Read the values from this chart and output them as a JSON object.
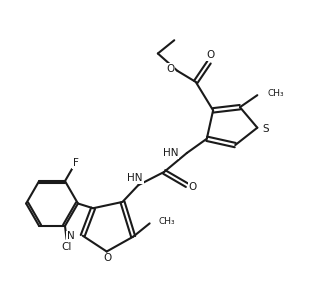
{
  "background_color": "#ffffff",
  "line_color": "#1a1a1a",
  "line_width": 1.5,
  "figsize": [
    3.22,
    2.87
  ],
  "dpi": 100,
  "xlim": [
    0,
    10
  ],
  "ylim": [
    0,
    9
  ]
}
